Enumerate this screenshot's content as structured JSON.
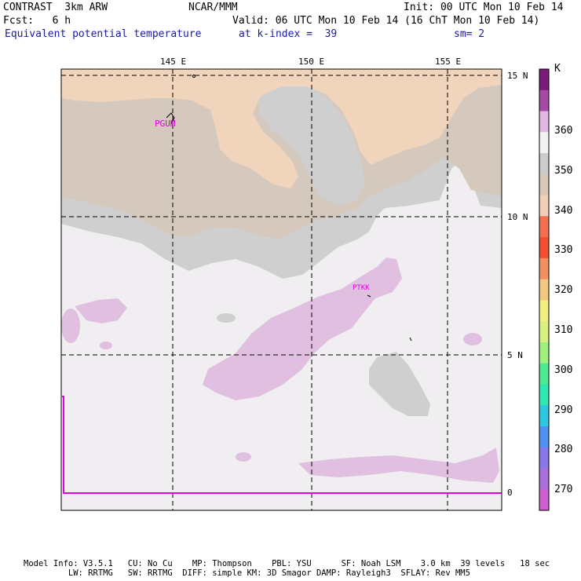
{
  "header": {
    "model": "CONTRAST  3km ARW",
    "org": "NCAR/MMM",
    "init": "Init: 00 UTC Mon 10 Feb 14",
    "fcst": "Fcst:   6 h",
    "valid": "Valid: 06 UTC Mon 10 Feb 14 (16 ChT Mon 10 Feb 14)",
    "field": "Equivalent potential temperature",
    "level": "at k-index =  39",
    "smooth": "sm= 2"
  },
  "map": {
    "lon_labels": [
      "145 E",
      "150 E",
      "155 E"
    ],
    "lat_labels": [
      "15 N",
      "10 N",
      "5 N",
      "0"
    ],
    "stations": [
      "PGUM",
      "PTKK"
    ]
  },
  "colorbar": {
    "unit": "K",
    "labels": [
      "360",
      "350",
      "340",
      "330",
      "320",
      "310",
      "300",
      "290",
      "280",
      "270"
    ],
    "colors": [
      "#7a1a7a",
      "#a64aa6",
      "#e0b8e0",
      "#f2f2f2",
      "#cccccc",
      "#d8c8b8",
      "#f2d0b8",
      "#f27050",
      "#f25030",
      "#f29060",
      "#f2c880",
      "#f2f080",
      "#d8f080",
      "#a0f080",
      "#50e890",
      "#30e8b0",
      "#30c8e0",
      "#5090f0",
      "#8878e8",
      "#a870d8",
      "#d060d0"
    ]
  },
  "footer": {
    "line1": "Model Info: V3.5.1   CU: No Cu    MP: Thompson    PBL: YSU      SF: Noah LSM    3.0 km  39 levels   18 sec",
    "line2": "         LW: RRTMG   SW: RRTMG  DIFF: simple KM: 3D Smagor DAMP: Rayleigh3  SFLAY: Rev MM5"
  }
}
